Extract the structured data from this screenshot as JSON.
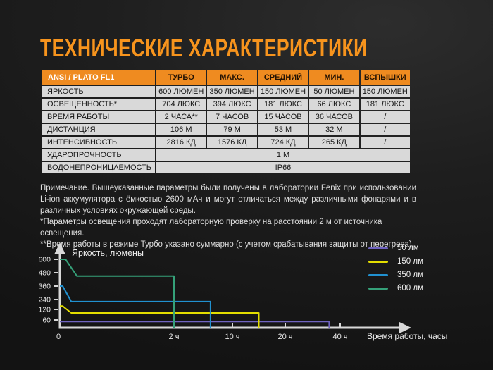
{
  "page": {
    "title": "ТЕХНИЧЕСКИЕ ХАРАКТЕРИСТИКИ",
    "accent_color": "#f7941d"
  },
  "table": {
    "header_color": "#ef8b20",
    "header": [
      "ANSI / PLATO FL1",
      "ТУРБО",
      "МАКС.",
      "СРЕДНИЙ",
      "МИН.",
      "ВСПЫШКИ"
    ],
    "rows": [
      {
        "label": "ЯРКОСТЬ",
        "values": [
          "600 ЛЮМЕН",
          "350 ЛЮМЕН",
          "150 ЛЮМЕН",
          "50 ЛЮМЕН",
          "150 ЛЮМЕН"
        ]
      },
      {
        "label": "ОСВЕЩЕННОСТЬ*",
        "values": [
          "704 ЛЮКС",
          "394 ЛЮКС",
          "181 ЛЮКС",
          "66 ЛЮКС",
          "181 ЛЮКС"
        ]
      },
      {
        "label": "ВРЕМЯ РАБОТЫ",
        "values": [
          "2 ЧАСА**",
          "7 ЧАСОВ",
          "15 ЧАСОВ",
          "36 ЧАСОВ",
          "/"
        ]
      },
      {
        "label": "ДИСТАНЦИЯ",
        "values": [
          "106 М",
          "79 М",
          "53 М",
          "32 М",
          "/"
        ]
      },
      {
        "label": "ИНТЕНСИВНОСТЬ",
        "values": [
          "2816 КД",
          "1576 КД",
          "724 КД",
          "265 КД",
          "/"
        ]
      },
      {
        "label": "УДАРОПРОЧНОСТЬ",
        "span_value": "1 М"
      },
      {
        "label": "ВОДОНЕПРОНИЦАЕМОСТЬ",
        "span_value": "IP66"
      }
    ]
  },
  "notes": {
    "p1": "Примечание. Вышеуказанные параметры были получены в лаборатории Fenix при использовании Li-ion аккумулятора с ёмкостью 2600 мАч и могут отличаться между различными фонарями и в различных условиях окружающей среды.",
    "p2": "*Параметры освещения проходят лабораторную проверку на расстоянии 2 м от источника освещения.",
    "p3": "**Время работы в режиме Турбо указано суммарно (с учетом срабатывания защиты от перегрева)."
  },
  "chart_data": {
    "type": "line",
    "title": "",
    "ylabel": "Яркость, люмены",
    "xlabel": "Время работы, часы",
    "x_scale_note": "non-linear compressed time axis",
    "ylim": [
      0,
      620
    ],
    "grid": false,
    "legend_position": "top-right",
    "axis_color": "#d8d8d8",
    "x_ticks": [
      {
        "value": 0,
        "label": "0"
      },
      {
        "value": 2,
        "label": "2 ч"
      },
      {
        "value": 10,
        "label": "10 ч"
      },
      {
        "value": 20,
        "label": "20 ч"
      },
      {
        "value": 40,
        "label": "40 ч"
      }
    ],
    "y_ticks": [
      60,
      120,
      240,
      360,
      480,
      600
    ],
    "series": [
      {
        "name": "50 лм",
        "color": "#6f63c0",
        "runtime_hours": 36,
        "points": [
          [
            0,
            48
          ],
          [
            36,
            48
          ],
          [
            36,
            0
          ]
        ]
      },
      {
        "name": "150 лм",
        "color": "#e3dd00",
        "runtime_hours": 15,
        "points": [
          [
            0,
            160
          ],
          [
            0.05,
            160
          ],
          [
            0.2,
            100
          ],
          [
            15,
            100
          ],
          [
            15,
            0
          ]
        ]
      },
      {
        "name": "350 лм",
        "color": "#2191d0",
        "runtime_hours": 7,
        "points": [
          [
            0,
            360
          ],
          [
            0.05,
            360
          ],
          [
            0.2,
            215
          ],
          [
            7,
            215
          ],
          [
            7,
            0
          ]
        ]
      },
      {
        "name": "600 лм",
        "color": "#35a179",
        "runtime_hours": 2,
        "points": [
          [
            0,
            600
          ],
          [
            0.1,
            600
          ],
          [
            0.3,
            450
          ],
          [
            2,
            450
          ],
          [
            2,
            0
          ]
        ]
      }
    ]
  }
}
